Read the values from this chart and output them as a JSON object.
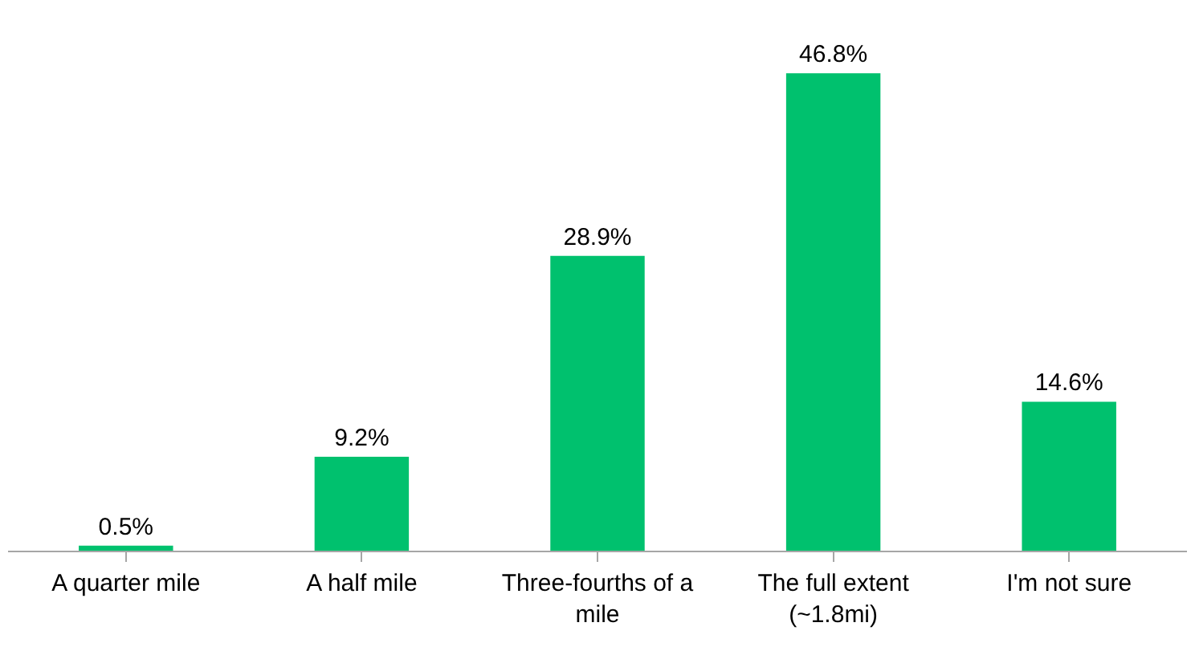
{
  "chart_data": {
    "type": "bar",
    "categories": [
      "A quarter mile",
      "A half mile",
      "Three-fourths of a mile",
      "The full extent (~1.8mi)",
      "I'm not sure"
    ],
    "values": [
      0.5,
      9.2,
      28.9,
      46.8,
      14.6
    ],
    "value_labels": [
      "0.5%",
      "9.2%",
      "28.9%",
      "46.8%",
      "14.6%"
    ],
    "color": "#00c16e"
  }
}
